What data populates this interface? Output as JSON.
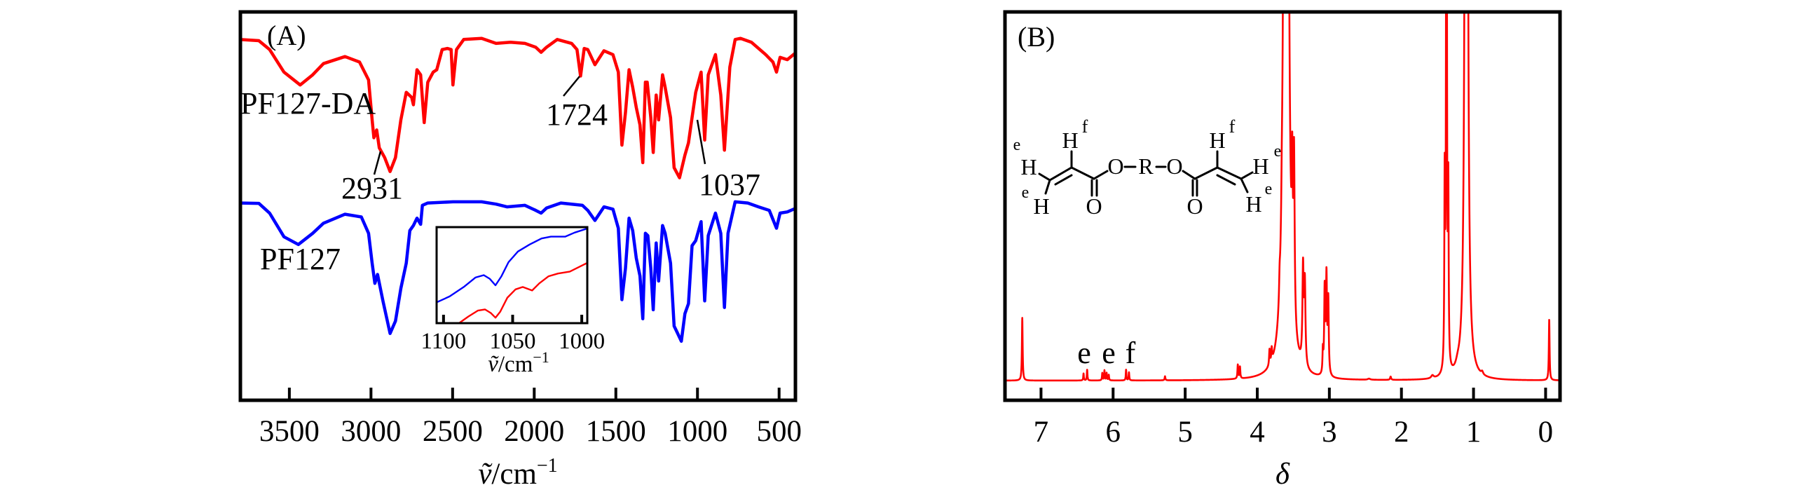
{
  "colors": {
    "pf127_da": "#ff0000",
    "pf127": "#0000ff",
    "nmr": "#ff0000"
  },
  "chart_data": [
    {
      "id": "A",
      "type": "line",
      "panel_label": "(A)",
      "xlabel": {
        "symbol": "ṽ",
        "unit": "/cm",
        "exp": "−1"
      },
      "ylabel": "",
      "xlim": [
        3800,
        400
      ],
      "ylim": [
        0,
        100
      ],
      "xticks": [
        3500,
        3000,
        2500,
        2000,
        1500,
        1000,
        500
      ],
      "xtick_labels": [
        "3500",
        "3000",
        "2500",
        "2000",
        "1500",
        "1000",
        "500"
      ],
      "series": [
        {
          "name": "PF127-DA",
          "color": "#ff0000",
          "x": [
            3808,
            3687,
            3621,
            3533,
            3434,
            3357,
            3291,
            3159,
            3070,
            3015,
            2993,
            2982,
            2965,
            2949,
            2916,
            2883,
            2850,
            2817,
            2784,
            2751,
            2740,
            2718,
            2696,
            2674,
            2652,
            2619,
            2597,
            2564,
            2531,
            2509,
            2498,
            2476,
            2432,
            2322,
            2234,
            2145,
            2057,
            1991,
            1958,
            1925,
            1859,
            1771,
            1738,
            1716,
            1694,
            1672,
            1628,
            1573,
            1518,
            1485,
            1463,
            1441,
            1419,
            1397,
            1375,
            1352,
            1335,
            1319,
            1308,
            1286,
            1271,
            1253,
            1238,
            1214,
            1198,
            1165,
            1143,
            1110,
            1077,
            1055,
            1033,
            1011,
            978,
            956,
            934,
            890,
            857,
            835,
            802,
            769,
            736,
            670,
            582,
            538,
            516,
            494,
            450,
            395
          ],
          "y": [
            92.9,
            92.6,
            90.3,
            84.5,
            81.2,
            83.8,
            86.7,
            88.5,
            87.1,
            82.5,
            72.2,
            67.6,
            69.6,
            65.0,
            62.5,
            58.9,
            62.5,
            72.2,
            79.3,
            78.0,
            76.1,
            85.1,
            83.8,
            71.5,
            81.9,
            84.5,
            85.1,
            90.3,
            90.6,
            90.3,
            81.2,
            90.3,
            92.9,
            93.2,
            91.9,
            92.2,
            91.9,
            90.9,
            89.6,
            90.9,
            92.9,
            91.9,
            90.3,
            83.5,
            90.6,
            90.3,
            86.4,
            90.0,
            89.0,
            84.5,
            65.7,
            74.1,
            85.1,
            80.6,
            75.4,
            70.9,
            61.2,
            81.9,
            81.9,
            72.8,
            63.8,
            78.6,
            72.2,
            83.8,
            80.6,
            72.8,
            59.9,
            57.3,
            63.1,
            66.3,
            72.8,
            79.3,
            84.5,
            67.0,
            83.8,
            89.0,
            78.6,
            64.4,
            85.8,
            92.9,
            93.2,
            92.2,
            89.0,
            87.1,
            84.5,
            88.3,
            87.7,
            89.6
          ]
        },
        {
          "name": "PF127",
          "color": "#0000ff",
          "x": [
            3808,
            3687,
            3621,
            3533,
            3445,
            3357,
            3291,
            3159,
            3059,
            3015,
            2993,
            2976,
            2960,
            2927,
            2883,
            2850,
            2817,
            2784,
            2762,
            2740,
            2718,
            2696,
            2685,
            2652,
            2498,
            2322,
            2234,
            2167,
            2057,
            1991,
            1958,
            1925,
            1837,
            1705,
            1672,
            1628,
            1573,
            1518,
            1485,
            1463,
            1441,
            1419,
            1397,
            1375,
            1352,
            1335,
            1319,
            1304,
            1286,
            1271,
            1253,
            1238,
            1214,
            1198,
            1165,
            1143,
            1128,
            1099,
            1077,
            1055,
            1033,
            1011,
            978,
            956,
            934,
            890,
            857,
            835,
            813,
            769,
            692,
            626,
            560,
            516,
            494,
            450,
            395
          ],
          "y": [
            50.8,
            50.7,
            48.2,
            42.1,
            40.1,
            43.0,
            45.6,
            47.9,
            47.2,
            43.0,
            35.3,
            30.1,
            32.4,
            25.6,
            17.2,
            20.4,
            28.8,
            35.3,
            43.7,
            45.0,
            46.9,
            45.3,
            50.2,
            50.8,
            51.1,
            51.1,
            50.5,
            49.8,
            50.2,
            48.9,
            48.2,
            49.5,
            50.8,
            50.2,
            48.9,
            46.3,
            49.8,
            49.2,
            44.3,
            25.9,
            34.0,
            46.9,
            43.7,
            36.6,
            32.0,
            21.0,
            43.0,
            42.4,
            34.0,
            23.3,
            40.5,
            30.7,
            45.0,
            43.0,
            35.3,
            19.1,
            17.8,
            15.2,
            22.3,
            24.9,
            39.8,
            41.1,
            46.0,
            25.6,
            42.4,
            48.2,
            43.0,
            23.9,
            43.0,
            51.1,
            50.8,
            49.8,
            48.9,
            44.3,
            48.2,
            48.5,
            49.5
          ]
        }
      ],
      "annotations": [
        {
          "text": "PF127-DA",
          "series": "PF127-DA"
        },
        {
          "text": "PF127",
          "series": "PF127"
        },
        {
          "text": "2931",
          "x": 2931
        },
        {
          "text": "1724",
          "x": 1724
        },
        {
          "text": "1037",
          "x": 1037
        }
      ],
      "inset": {
        "type": "line",
        "xlim": [
          1105,
          996
        ],
        "ylim": [
          0,
          100
        ],
        "xticks": [
          1100,
          1050,
          1000
        ],
        "xtick_labels": [
          "1100",
          "1050",
          "1000"
        ],
        "xlabel": {
          "symbol": "ṽ",
          "unit": "/cm",
          "exp": "−1"
        },
        "series": [
          {
            "name": "PF127",
            "color": "#0000ff",
            "x": [
              1105,
              1095.6,
              1085.4,
              1076.9,
              1070.9,
              1066.6,
              1062.4,
              1058.1,
              1053.0,
              1046.2,
              1037.6,
              1029.1,
              1022.3,
              1012.0,
              1005.2,
              995
            ],
            "y": [
              21.7,
              27.8,
              37.7,
              47.5,
              50.0,
              46.3,
              39.4,
              48.8,
              63.5,
              74.6,
              82.0,
              88.2,
              90.1,
              90.1,
              94.3,
              99
            ]
          },
          {
            "name": "PF127-DA",
            "color": "#ff0000",
            "x": [
              1088.8,
              1082.0,
              1075.2,
              1070.0,
              1065.8,
              1062.4,
              1059.0,
              1053.8,
              1047.9,
              1042.7,
              1035.9,
              1030.8,
              1024.0,
              1017.2,
              1008.6,
              1001.8,
              995
            ],
            "y": [
              0,
              6.9,
              13.1,
              14.3,
              10.6,
              5.7,
              11.8,
              26.6,
              35.2,
              37.7,
              34.0,
              41.4,
              48.8,
              51.7,
              53.7,
              58.6,
              63.5
            ]
          }
        ]
      }
    },
    {
      "id": "B",
      "type": "line",
      "panel_label": "(B)",
      "xlabel": "δ",
      "ylabel": "",
      "xlim": [
        7.5,
        -0.2
      ],
      "ylim": [
        0,
        100
      ],
      "xticks": [
        7,
        6,
        5,
        4,
        3,
        2,
        1,
        0
      ],
      "xtick_labels": [
        "7",
        "6",
        "5",
        "4",
        "3",
        "2",
        "1",
        "0"
      ],
      "peaks": [
        {
          "delta": 7.26,
          "height": 17.0,
          "width": 0.006
        },
        {
          "delta": 6.41,
          "height": 1.9,
          "width": 0.005
        },
        {
          "delta": 6.36,
          "height": 2.9,
          "width": 0.005
        },
        {
          "delta": 6.15,
          "height": 2.0,
          "width": 0.005
        },
        {
          "delta": 6.12,
          "height": 2.7,
          "width": 0.005
        },
        {
          "delta": 6.09,
          "height": 2.0,
          "width": 0.005
        },
        {
          "delta": 6.06,
          "height": 1.5,
          "width": 0.005
        },
        {
          "delta": 5.82,
          "height": 2.9,
          "width": 0.005
        },
        {
          "delta": 5.78,
          "height": 2.2,
          "width": 0.005
        },
        {
          "delta": 5.28,
          "height": 1.1,
          "width": 0.006
        },
        {
          "delta": 4.27,
          "height": 3.8,
          "width": 0.006
        },
        {
          "delta": 4.24,
          "height": 3.2,
          "width": 0.006
        },
        {
          "delta": 3.83,
          "height": 4.3,
          "width": 0.007
        },
        {
          "delta": 3.8,
          "height": 3.6,
          "width": 0.007
        },
        {
          "delta": 3.69,
          "height": 5.0,
          "width": 0.008
        },
        {
          "delta": 3.66,
          "height": 6.0,
          "width": 0.008
        },
        {
          "delta": 3.6,
          "height": 1500,
          "width": 0.012
        },
        {
          "delta": 3.515,
          "height": 32,
          "width": 0.008
        },
        {
          "delta": 3.49,
          "height": 45,
          "width": 0.01
        },
        {
          "delta": 3.365,
          "height": 26,
          "width": 0.01
        },
        {
          "delta": 3.34,
          "height": 22,
          "width": 0.01
        },
        {
          "delta": 3.09,
          "height": 6,
          "width": 0.006
        },
        {
          "delta": 3.065,
          "height": 23,
          "width": 0.008
        },
        {
          "delta": 3.04,
          "height": 26,
          "width": 0.008
        },
        {
          "delta": 3.015,
          "height": 20,
          "width": 0.008
        },
        {
          "delta": 2.45,
          "height": 0.3,
          "width": 0.02
        },
        {
          "delta": 2.15,
          "height": 0.9,
          "width": 0.008
        },
        {
          "delta": 1.57,
          "height": 0.8,
          "width": 0.02
        },
        {
          "delta": 1.4,
          "height": 50,
          "width": 0.006
        },
        {
          "delta": 1.375,
          "height": 400,
          "width": 0.004
        },
        {
          "delta": 1.35,
          "height": 47,
          "width": 0.006
        },
        {
          "delta": 1.22,
          "height": 1.2,
          "width": 0.03
        },
        {
          "delta": 1.1,
          "height": 900,
          "width": 0.01
        },
        {
          "delta": 0.88,
          "height": 0.8,
          "width": 0.015
        },
        {
          "delta": -0.05,
          "height": 16.5,
          "width": 0.006
        }
      ],
      "peak_labels": [
        "e",
        "e",
        "f"
      ],
      "structure_labels": {
        "h_e1": "H",
        "e1": "e",
        "h_e2": "H",
        "e2": "e",
        "h_f1": "H",
        "f1": "f",
        "o_c1": "O",
        "o1": "O",
        "r": "R",
        "o2": "O",
        "o_c2": "O",
        "h_f2": "H",
        "f2": "f",
        "h_e3": "H",
        "e3": "e",
        "h_e4": "H",
        "e4": "e"
      }
    }
  ]
}
